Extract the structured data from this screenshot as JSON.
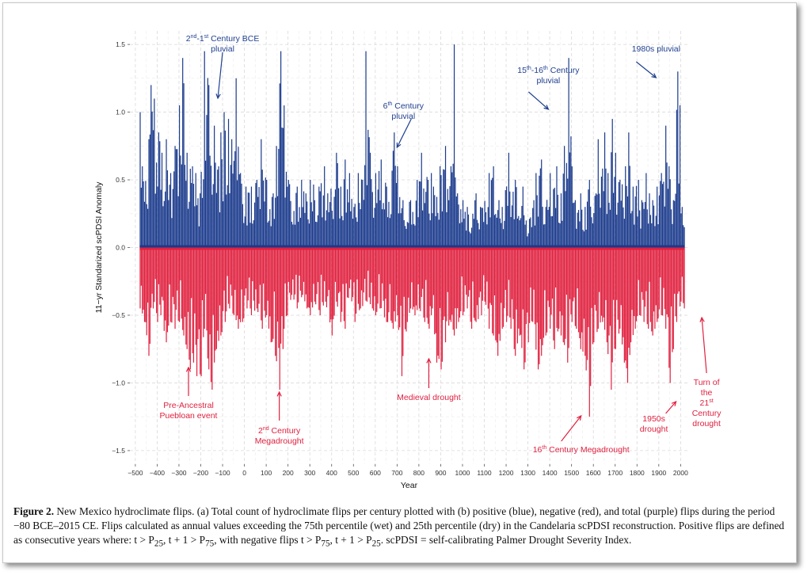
{
  "chart_data": {
    "type": "bar",
    "xlabel": "Year",
    "ylabel": "11−yr Standarized scPDSI Anomaly",
    "xlim": [
      -525,
      2035
    ],
    "ylim": [
      -1.6,
      1.6
    ],
    "x_ticks": [
      -500,
      -400,
      -300,
      -200,
      -100,
      0,
      100,
      200,
      300,
      400,
      500,
      600,
      700,
      800,
      900,
      1000,
      1100,
      1200,
      1300,
      1400,
      1500,
      1600,
      1700,
      1800,
      1900,
      2000
    ],
    "x_tick_labels": [
      "−500",
      "−400",
      "−300",
      "−200",
      "−100",
      "0",
      "100",
      "200",
      "300",
      "400",
      "500",
      "600",
      "700",
      "800",
      "900",
      "1000",
      "1100",
      "1200",
      "1300",
      "1400",
      "1500",
      "1600",
      "1700",
      "1800",
      "1900",
      "2000"
    ],
    "y_ticks": [
      -1.5,
      -1.0,
      -0.5,
      0.0,
      0.5,
      1.0,
      1.5
    ],
    "y_tick_labels": [
      "−1.5",
      "−1.0",
      "−0.5",
      "0.0",
      "0.5",
      "1.0",
      "1.5"
    ],
    "grid": true,
    "colors": {
      "positive": "#1a3a8c",
      "negative": "#e0213f",
      "grid": "#d9d9d9"
    },
    "x_range": [
      -480,
      2015
    ],
    "x_step": 5,
    "envelope_positive": [
      [
        -480,
        1.0
      ],
      [
        -470,
        0.6
      ],
      [
        -440,
        0.8
      ],
      [
        -430,
        1.2
      ],
      [
        -415,
        1.1
      ],
      [
        -395,
        0.85
      ],
      [
        -380,
        0.7
      ],
      [
        -360,
        0.8
      ],
      [
        -340,
        0.55
      ],
      [
        -320,
        0.75
      ],
      [
        -300,
        1.05
      ],
      [
        -285,
        1.4
      ],
      [
        -265,
        0.7
      ],
      [
        -240,
        0.6
      ],
      [
        -225,
        0.55
      ],
      [
        -205,
        0.4
      ],
      [
        -185,
        1.45
      ],
      [
        -165,
        1.2
      ],
      [
        -140,
        0.9
      ],
      [
        -120,
        0.6
      ],
      [
        -110,
        0.85
      ],
      [
        -95,
        1.0
      ],
      [
        -75,
        0.95
      ],
      [
        -60,
        0.8
      ],
      [
        -40,
        1.25
      ],
      [
        -20,
        0.55
      ],
      [
        5,
        0.45
      ],
      [
        30,
        0.45
      ],
      [
        55,
        0.5
      ],
      [
        75,
        0.8
      ],
      [
        100,
        0.5
      ],
      [
        130,
        0.4
      ],
      [
        145,
        0.75
      ],
      [
        165,
        1.45
      ],
      [
        180,
        1.05
      ],
      [
        200,
        0.5
      ],
      [
        240,
        0.45
      ],
      [
        260,
        0.5
      ],
      [
        280,
        0.4
      ],
      [
        300,
        0.5
      ],
      [
        340,
        0.45
      ],
      [
        365,
        0.6
      ],
      [
        380,
        0.4
      ],
      [
        420,
        0.7
      ],
      [
        440,
        0.45
      ],
      [
        460,
        0.65
      ],
      [
        480,
        0.55
      ],
      [
        500,
        0.3
      ],
      [
        520,
        0.55
      ],
      [
        540,
        0.5
      ],
      [
        555,
        1.45
      ],
      [
        575,
        0.7
      ],
      [
        600,
        0.55
      ],
      [
        625,
        0.65
      ],
      [
        650,
        0.45
      ],
      [
        685,
        0.85
      ],
      [
        700,
        0.6
      ],
      [
        725,
        0.35
      ],
      [
        760,
        0.35
      ],
      [
        790,
        0.5
      ],
      [
        810,
        0.7
      ],
      [
        840,
        0.5
      ],
      [
        855,
        0.55
      ],
      [
        865,
        0.45
      ],
      [
        895,
        0.6
      ],
      [
        920,
        0.75
      ],
      [
        945,
        0.6
      ],
      [
        960,
        1.5
      ],
      [
        975,
        0.4
      ],
      [
        1000,
        0.35
      ],
      [
        1020,
        0.3
      ],
      [
        1045,
        0.25
      ],
      [
        1060,
        0.4
      ],
      [
        1080,
        0.3
      ],
      [
        1120,
        0.55
      ],
      [
        1140,
        0.6
      ],
      [
        1165,
        0.35
      ],
      [
        1180,
        0.3
      ],
      [
        1210,
        0.7
      ],
      [
        1240,
        0.5
      ],
      [
        1275,
        0.45
      ],
      [
        1290,
        0.2
      ],
      [
        1325,
        0.35
      ],
      [
        1335,
        0.55
      ],
      [
        1360,
        0.65
      ],
      [
        1380,
        0.3
      ],
      [
        1400,
        0.55
      ],
      [
        1430,
        0.6
      ],
      [
        1450,
        0.4
      ],
      [
        1465,
        0.75
      ],
      [
        1485,
        1.4
      ],
      [
        1500,
        0.6
      ],
      [
        1515,
        0.35
      ],
      [
        1540,
        0.4
      ],
      [
        1560,
        0.3
      ],
      [
        1580,
        0.5
      ],
      [
        1610,
        0.4
      ],
      [
        1620,
        0.8
      ],
      [
        1650,
        0.85
      ],
      [
        1665,
        0.55
      ],
      [
        1685,
        0.95
      ],
      [
        1700,
        0.7
      ],
      [
        1720,
        0.5
      ],
      [
        1745,
        0.6
      ],
      [
        1760,
        0.85
      ],
      [
        1780,
        0.45
      ],
      [
        1805,
        0.5
      ],
      [
        1820,
        0.35
      ],
      [
        1840,
        0.55
      ],
      [
        1855,
        0.4
      ],
      [
        1870,
        0.35
      ],
      [
        1890,
        0.45
      ],
      [
        1910,
        0.55
      ],
      [
        1930,
        0.9
      ],
      [
        1945,
        0.6
      ],
      [
        1965,
        0.35
      ],
      [
        1985,
        1.3
      ],
      [
        1995,
        1.05
      ],
      [
        2005,
        0.3
      ],
      [
        2015,
        0.15
      ]
    ],
    "envelope_negative": [
      [
        -480,
        -0.45
      ],
      [
        -460,
        -0.55
      ],
      [
        -440,
        -0.8
      ],
      [
        -420,
        -0.45
      ],
      [
        -400,
        -0.55
      ],
      [
        -385,
        -0.5
      ],
      [
        -360,
        -0.7
      ],
      [
        -340,
        -0.55
      ],
      [
        -320,
        -0.6
      ],
      [
        -300,
        -0.55
      ],
      [
        -280,
        -0.65
      ],
      [
        -265,
        -0.75
      ],
      [
        -250,
        -0.9
      ],
      [
        -235,
        -0.85
      ],
      [
        -220,
        -0.95
      ],
      [
        -200,
        -0.95
      ],
      [
        -185,
        -0.6
      ],
      [
        -165,
        -0.9
      ],
      [
        -150,
        -1.05
      ],
      [
        -130,
        -0.75
      ],
      [
        -110,
        -0.65
      ],
      [
        -90,
        -0.55
      ],
      [
        -70,
        -0.45
      ],
      [
        -50,
        -0.5
      ],
      [
        -30,
        -0.6
      ],
      [
        -10,
        -0.55
      ],
      [
        10,
        -0.45
      ],
      [
        30,
        -0.5
      ],
      [
        55,
        -0.45
      ],
      [
        80,
        -0.6
      ],
      [
        100,
        -0.5
      ],
      [
        120,
        -0.7
      ],
      [
        140,
        -0.8
      ],
      [
        160,
        -1.05
      ],
      [
        175,
        -0.75
      ],
      [
        195,
        -0.5
      ],
      [
        215,
        -0.35
      ],
      [
        240,
        -0.45
      ],
      [
        265,
        -0.35
      ],
      [
        285,
        -0.45
      ],
      [
        300,
        -0.5
      ],
      [
        320,
        -0.4
      ],
      [
        345,
        -0.5
      ],
      [
        370,
        -0.4
      ],
      [
        400,
        -0.65
      ],
      [
        420,
        -0.4
      ],
      [
        440,
        -0.55
      ],
      [
        460,
        -0.6
      ],
      [
        480,
        -0.3
      ],
      [
        505,
        -0.55
      ],
      [
        530,
        -0.45
      ],
      [
        560,
        -0.4
      ],
      [
        585,
        -0.45
      ],
      [
        600,
        -0.5
      ],
      [
        620,
        -0.45
      ],
      [
        650,
        -0.55
      ],
      [
        680,
        -0.6
      ],
      [
        700,
        -0.5
      ],
      [
        720,
        -0.95
      ],
      [
        745,
        -0.55
      ],
      [
        760,
        -0.45
      ],
      [
        780,
        -0.5
      ],
      [
        800,
        -0.45
      ],
      [
        825,
        -0.55
      ],
      [
        845,
        -0.6
      ],
      [
        860,
        -0.45
      ],
      [
        880,
        -0.85
      ],
      [
        900,
        -0.9
      ],
      [
        920,
        -0.7
      ],
      [
        945,
        -0.55
      ],
      [
        960,
        -0.65
      ],
      [
        980,
        -0.55
      ],
      [
        1000,
        -0.5
      ],
      [
        1020,
        -0.45
      ],
      [
        1040,
        -0.6
      ],
      [
        1060,
        -0.55
      ],
      [
        1085,
        -0.5
      ],
      [
        1100,
        -0.4
      ],
      [
        1120,
        -0.6
      ],
      [
        1140,
        -0.65
      ],
      [
        1160,
        -0.8
      ],
      [
        1180,
        -0.6
      ],
      [
        1200,
        -0.55
      ],
      [
        1220,
        -0.6
      ],
      [
        1240,
        -0.8
      ],
      [
        1260,
        -0.65
      ],
      [
        1280,
        -0.9
      ],
      [
        1300,
        -0.7
      ],
      [
        1320,
        -0.55
      ],
      [
        1345,
        -0.9
      ],
      [
        1360,
        -0.8
      ],
      [
        1380,
        -0.65
      ],
      [
        1400,
        -0.6
      ],
      [
        1420,
        -0.75
      ],
      [
        1440,
        -0.6
      ],
      [
        1460,
        -0.7
      ],
      [
        1480,
        -0.85
      ],
      [
        1500,
        -0.55
      ],
      [
        1520,
        -0.6
      ],
      [
        1540,
        -0.75
      ],
      [
        1560,
        -0.8
      ],
      [
        1580,
        -1.25
      ],
      [
        1600,
        -0.7
      ],
      [
        1620,
        -0.6
      ],
      [
        1640,
        -0.55
      ],
      [
        1660,
        -0.7
      ],
      [
        1680,
        -1.05
      ],
      [
        1700,
        -0.75
      ],
      [
        1720,
        -0.6
      ],
      [
        1740,
        -0.85
      ],
      [
        1755,
        -1.0
      ],
      [
        1770,
        -0.7
      ],
      [
        1790,
        -0.6
      ],
      [
        1810,
        -0.5
      ],
      [
        1830,
        -0.55
      ],
      [
        1850,
        -0.6
      ],
      [
        1870,
        -0.65
      ],
      [
        1890,
        -0.55
      ],
      [
        1910,
        -0.5
      ],
      [
        1930,
        -0.6
      ],
      [
        1950,
        -1.0
      ],
      [
        1965,
        -0.75
      ],
      [
        1980,
        -0.55
      ],
      [
        2000,
        -0.4
      ],
      [
        2015,
        -0.45
      ]
    ],
    "annotations": [
      {
        "group": "blue",
        "lines": [
          [
            "2",
            "nd",
            "-1",
            "st",
            " Century BCE"
          ],
          [
            "pluvial"
          ]
        ],
        "x": -100
      },
      {
        "group": "blue",
        "lines": [
          [
            "6",
            "th",
            " Century"
          ],
          [
            "pluvial"
          ]
        ],
        "x": 620
      },
      {
        "group": "blue",
        "lines": [
          [
            "15",
            "th",
            "-16",
            "th",
            " Century"
          ],
          [
            "pluvial"
          ]
        ],
        "x": 1430
      },
      {
        "group": "blue",
        "lines": [
          [
            "1980s pluvial"
          ]
        ],
        "x": 1960
      },
      {
        "group": "red",
        "lines": [
          [
            "Pre-Ancestral"
          ],
          [
            "Puebloan event"
          ]
        ],
        "x": -220
      },
      {
        "group": "red",
        "lines": [
          [
            "2",
            "nd",
            " Century"
          ],
          [
            "Megadrought"
          ]
        ],
        "x": 160
      },
      {
        "group": "red",
        "lines": [
          [
            "Medieval drought"
          ]
        ],
        "x": 900
      },
      {
        "group": "red",
        "lines": [
          [
            "16",
            "th",
            " Century Megadrought"
          ]
        ],
        "x": 1580
      },
      {
        "group": "red",
        "lines": [
          [
            "1950s"
          ],
          [
            "drought"
          ]
        ],
        "x": 1950
      },
      {
        "group": "red",
        "lines": [
          [
            "Turn of"
          ],
          [
            "the"
          ],
          [
            "21",
            "st"
          ],
          [
            "Century"
          ],
          [
            "drought"
          ]
        ],
        "x": 2010
      }
    ]
  },
  "caption": {
    "label": "Figure 2.",
    "text": " New Mexico hydroclimate flips. (a) Total count of hydroclimate flips per century plotted with (b) positive (blue), negative (red), and total (purple) flips during the period −80 BCE–2015 CE. Flips calculated as annual values exceeding the 75th percentile (wet) and 25th percentile (dry) in the Candelaria scPDSI reconstruction. Positive flips are defined as consecutive years where: t > P",
    "sub1": "25",
    "text2": ", t + 1 > P",
    "sub2": "75",
    "text3": ", with negative flips t > P",
    "sub3": "75",
    "text4": ", t + 1 > P",
    "sub4": "25",
    "text5": ". scPDSI = self-calibrating Palmer Drought Severity Index."
  }
}
